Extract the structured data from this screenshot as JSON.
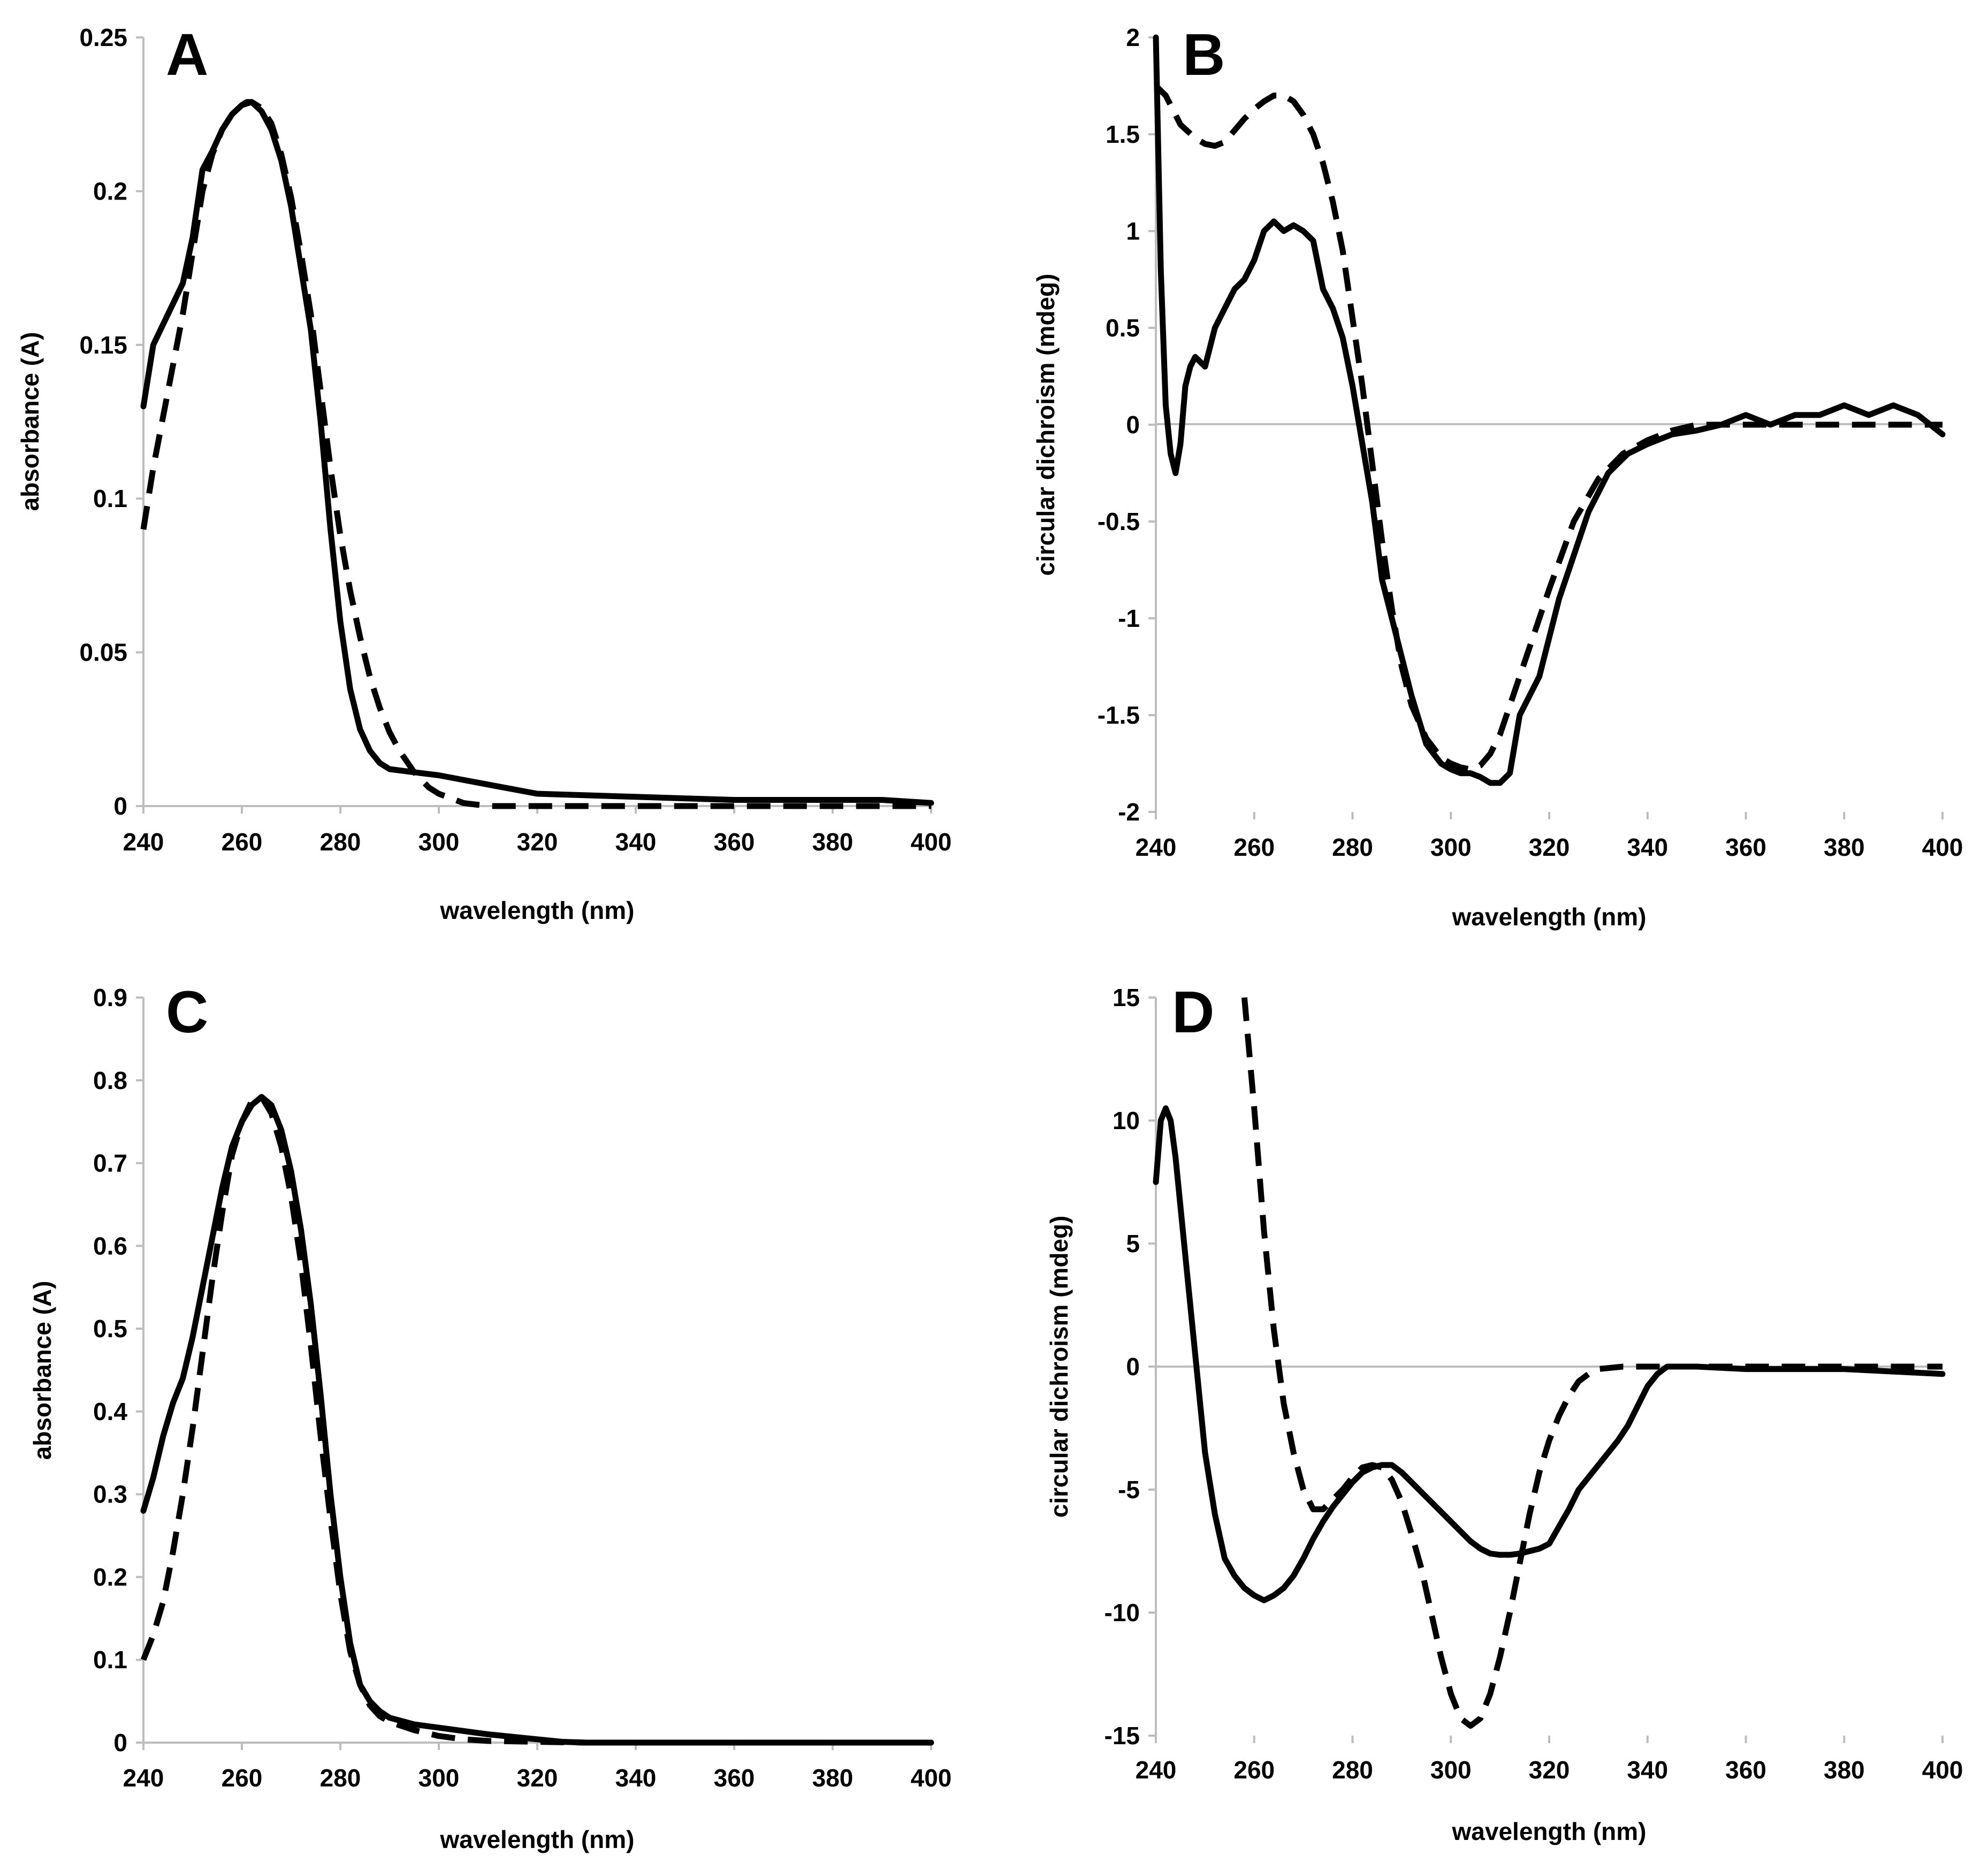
{
  "chart_data": [
    {
      "panel": "A",
      "type": "line",
      "title": "",
      "xlabel": "wavelength (nm)",
      "ylabel": "absorbance (A)",
      "xlim": [
        240,
        400
      ],
      "ylim": [
        0,
        0.25
      ],
      "xticks": [
        "240",
        "260",
        "280",
        "300",
        "320",
        "340",
        "360",
        "380",
        "400"
      ],
      "yticks": [
        "0",
        "0.05",
        "0.1",
        "0.15",
        "0.2",
        "0.25"
      ],
      "grid": false,
      "series": [
        {
          "name": "solid",
          "style": "solid",
          "x": [
            240,
            242,
            245,
            248,
            250,
            252,
            254,
            256,
            258,
            260,
            261,
            262,
            264,
            266,
            268,
            270,
            272,
            274,
            276,
            278,
            280,
            282,
            284,
            286,
            288,
            290,
            295,
            300,
            310,
            320,
            340,
            360,
            380,
            390,
            395,
            400
          ],
          "y": [
            0.13,
            0.15,
            0.16,
            0.17,
            0.185,
            0.207,
            0.213,
            0.22,
            0.225,
            0.228,
            0.229,
            0.229,
            0.226,
            0.22,
            0.21,
            0.195,
            0.175,
            0.155,
            0.125,
            0.09,
            0.06,
            0.038,
            0.025,
            0.018,
            0.014,
            0.012,
            0.011,
            0.01,
            0.007,
            0.004,
            0.003,
            0.002,
            0.002,
            0.002,
            0.0015,
            0.001
          ]
        },
        {
          "name": "dashed",
          "style": "dashed",
          "x": [
            240,
            242,
            245,
            248,
            250,
            252,
            254,
            256,
            258,
            260,
            262,
            264,
            266,
            268,
            270,
            272,
            274,
            276,
            278,
            280,
            282,
            284,
            286,
            288,
            290,
            292,
            295,
            298,
            300,
            305,
            310,
            320,
            340,
            360,
            380,
            400
          ],
          "y": [
            0.09,
            0.11,
            0.135,
            0.16,
            0.18,
            0.2,
            0.212,
            0.22,
            0.225,
            0.228,
            0.229,
            0.227,
            0.222,
            0.212,
            0.198,
            0.18,
            0.16,
            0.135,
            0.11,
            0.088,
            0.07,
            0.055,
            0.042,
            0.032,
            0.024,
            0.018,
            0.011,
            0.006,
            0.004,
            0.001,
            0.0,
            0.0,
            0.0,
            0.0,
            0.0,
            0.0
          ]
        }
      ]
    },
    {
      "panel": "B",
      "type": "line",
      "title": "",
      "xlabel": "wavelength (nm)",
      "ylabel": "circular dichroism (mdeg)",
      "xlim": [
        240,
        400
      ],
      "ylim": [
        -2,
        2
      ],
      "xticks": [
        "240",
        "260",
        "280",
        "300",
        "320",
        "340",
        "360",
        "380",
        "400"
      ],
      "yticks": [
        "-2",
        "-1.5",
        "-1",
        "-0.5",
        "0",
        "0.5",
        "1",
        "1.5",
        "2"
      ],
      "grid": false,
      "series": [
        {
          "name": "solid",
          "style": "solid",
          "x": [
            240,
            241,
            242,
            243,
            244,
            245,
            246,
            247,
            248,
            250,
            251,
            252,
            254,
            256,
            258,
            260,
            262,
            264,
            266,
            268,
            270,
            272,
            274,
            276,
            278,
            280,
            282,
            284,
            286,
            288,
            290,
            292,
            295,
            298,
            300,
            302,
            304,
            306,
            308,
            310,
            312,
            314,
            316,
            318,
            320,
            322,
            324,
            326,
            328,
            330,
            332,
            334,
            336,
            340,
            345,
            350,
            355,
            360,
            365,
            370,
            375,
            380,
            385,
            390,
            395,
            400
          ],
          "y": [
            2.0,
            0.8,
            0.1,
            -0.15,
            -0.25,
            -0.1,
            0.2,
            0.3,
            0.35,
            0.3,
            0.4,
            0.5,
            0.6,
            0.7,
            0.75,
            0.85,
            1.0,
            1.05,
            1.0,
            1.03,
            1.0,
            0.95,
            0.7,
            0.6,
            0.45,
            0.2,
            -0.1,
            -0.4,
            -0.8,
            -1.0,
            -1.2,
            -1.4,
            -1.65,
            -1.75,
            -1.78,
            -1.8,
            -1.8,
            -1.82,
            -1.85,
            -1.85,
            -1.8,
            -1.5,
            -1.4,
            -1.3,
            -1.1,
            -0.9,
            -0.75,
            -0.6,
            -0.45,
            -0.35,
            -0.25,
            -0.2,
            -0.15,
            -0.1,
            -0.05,
            -0.03,
            0.0,
            0.05,
            0.0,
            0.05,
            0.05,
            0.1,
            0.05,
            0.1,
            0.05,
            -0.05
          ]
        },
        {
          "name": "dashed",
          "style": "dashed",
          "x": [
            240,
            242,
            245,
            248,
            250,
            252,
            254,
            256,
            258,
            260,
            262,
            264,
            266,
            268,
            270,
            272,
            274,
            276,
            278,
            280,
            282,
            284,
            286,
            288,
            290,
            292,
            295,
            298,
            300,
            302,
            304,
            306,
            308,
            310,
            312,
            314,
            316,
            318,
            320,
            325,
            330,
            335,
            340,
            345,
            350,
            360,
            370,
            380,
            390,
            400
          ],
          "y": [
            1.75,
            1.7,
            1.55,
            1.48,
            1.45,
            1.44,
            1.46,
            1.52,
            1.58,
            1.63,
            1.67,
            1.7,
            1.7,
            1.67,
            1.6,
            1.5,
            1.35,
            1.15,
            0.9,
            0.55,
            0.2,
            -0.2,
            -0.6,
            -0.95,
            -1.25,
            -1.45,
            -1.62,
            -1.72,
            -1.75,
            -1.77,
            -1.78,
            -1.76,
            -1.7,
            -1.6,
            -1.45,
            -1.3,
            -1.15,
            -1.0,
            -0.85,
            -0.5,
            -0.28,
            -0.15,
            -0.08,
            -0.03,
            0.0,
            0.0,
            0.0,
            0.0,
            0.0,
            0.0
          ]
        }
      ]
    },
    {
      "panel": "C",
      "type": "line",
      "title": "",
      "xlabel": "wavelength (nm)",
      "ylabel": "absorbance (A)",
      "xlim": [
        240,
        400
      ],
      "ylim": [
        0,
        0.9
      ],
      "xticks": [
        "240",
        "260",
        "280",
        "300",
        "320",
        "340",
        "360",
        "380",
        "400"
      ],
      "yticks": [
        "0",
        "0.1",
        "0.2",
        "0.3",
        "0.4",
        "0.5",
        "0.6",
        "0.7",
        "0.8",
        "0.9"
      ],
      "grid": false,
      "series": [
        {
          "name": "solid",
          "style": "solid",
          "x": [
            240,
            242,
            244,
            246,
            248,
            250,
            252,
            254,
            256,
            258,
            260,
            262,
            264,
            266,
            268,
            270,
            272,
            274,
            276,
            278,
            280,
            282,
            284,
            286,
            288,
            290,
            295,
            300,
            310,
            320,
            325,
            330,
            340,
            360,
            380,
            400
          ],
          "y": [
            0.28,
            0.32,
            0.37,
            0.41,
            0.44,
            0.49,
            0.55,
            0.61,
            0.67,
            0.72,
            0.75,
            0.77,
            0.78,
            0.77,
            0.74,
            0.69,
            0.62,
            0.53,
            0.42,
            0.3,
            0.2,
            0.12,
            0.07,
            0.05,
            0.038,
            0.03,
            0.022,
            0.018,
            0.01,
            0.004,
            0.001,
            0.0,
            0.0,
            0.0,
            0.0,
            0.0
          ]
        },
        {
          "name": "dashed",
          "style": "dashed",
          "x": [
            240,
            242,
            244,
            246,
            248,
            250,
            252,
            254,
            256,
            258,
            260,
            262,
            264,
            266,
            268,
            270,
            272,
            274,
            276,
            278,
            280,
            282,
            284,
            286,
            288,
            290,
            295,
            300,
            305,
            310,
            320,
            330,
            340,
            360,
            380,
            400
          ],
          "y": [
            0.1,
            0.13,
            0.17,
            0.23,
            0.3,
            0.38,
            0.47,
            0.56,
            0.64,
            0.71,
            0.75,
            0.775,
            0.78,
            0.76,
            0.72,
            0.66,
            0.58,
            0.48,
            0.37,
            0.27,
            0.18,
            0.11,
            0.07,
            0.045,
            0.032,
            0.025,
            0.015,
            0.008,
            0.004,
            0.002,
            0.001,
            0.0,
            0.0,
            0.0,
            0.0,
            0.0
          ]
        }
      ]
    },
    {
      "panel": "D",
      "type": "line",
      "title": "",
      "xlabel": "wavelength (nm)",
      "ylabel": "circular dichroism (mdeg)",
      "xlim": [
        240,
        400
      ],
      "ylim": [
        -15,
        15
      ],
      "xticks": [
        "240",
        "260",
        "280",
        "300",
        "320",
        "340",
        "360",
        "380",
        "400"
      ],
      "yticks": [
        "-15",
        "-10",
        "-5",
        "0",
        "5",
        "10",
        "15"
      ],
      "grid": false,
      "series": [
        {
          "name": "solid",
          "style": "solid",
          "x": [
            240,
            241,
            242,
            243,
            244,
            246,
            248,
            250,
            252,
            254,
            256,
            258,
            260,
            262,
            264,
            266,
            268,
            270,
            272,
            274,
            276,
            278,
            280,
            282,
            284,
            286,
            288,
            290,
            292,
            295,
            298,
            300,
            302,
            304,
            306,
            308,
            310,
            312,
            314,
            316,
            318,
            320,
            322,
            324,
            326,
            328,
            330,
            332,
            334,
            336,
            338,
            340,
            342,
            344,
            346,
            350,
            360,
            370,
            380,
            390,
            400
          ],
          "y": [
            7.5,
            10.0,
            10.5,
            10.0,
            8.5,
            4.5,
            0.5,
            -3.5,
            -6.0,
            -7.8,
            -8.5,
            -9.0,
            -9.3,
            -9.5,
            -9.3,
            -9.0,
            -8.5,
            -7.8,
            -7.0,
            -6.3,
            -5.7,
            -5.2,
            -4.7,
            -4.3,
            -4.1,
            -4.0,
            -4.0,
            -4.3,
            -4.7,
            -5.3,
            -5.9,
            -6.3,
            -6.7,
            -7.1,
            -7.4,
            -7.6,
            -7.65,
            -7.65,
            -7.6,
            -7.5,
            -7.4,
            -7.2,
            -6.5,
            -5.8,
            -5.0,
            -4.5,
            -4.0,
            -3.5,
            -3.0,
            -2.4,
            -1.6,
            -0.8,
            -0.3,
            0.0,
            0.0,
            0.0,
            -0.1,
            -0.1,
            -0.1,
            -0.2,
            -0.3
          ]
        },
        {
          "name": "dashed",
          "style": "dashed",
          "x": [
            258,
            260,
            262,
            264,
            266,
            268,
            270,
            272,
            274,
            276,
            278,
            280,
            282,
            284,
            286,
            288,
            290,
            292,
            294,
            296,
            298,
            300,
            302,
            304,
            306,
            308,
            310,
            312,
            314,
            316,
            318,
            320,
            322,
            324,
            326,
            328,
            330,
            335,
            340,
            345,
            350,
            360,
            370,
            380,
            390,
            400
          ],
          "y": [
            15.0,
            10.5,
            5.5,
            1.5,
            -1.5,
            -3.5,
            -5.0,
            -5.8,
            -5.8,
            -5.4,
            -5.0,
            -4.5,
            -4.1,
            -4.0,
            -4.1,
            -4.6,
            -5.5,
            -6.8,
            -8.2,
            -10.0,
            -11.8,
            -13.3,
            -14.3,
            -14.6,
            -14.3,
            -13.3,
            -11.8,
            -10.0,
            -8.0,
            -6.0,
            -4.3,
            -3.0,
            -2.0,
            -1.2,
            -0.6,
            -0.3,
            -0.1,
            0.0,
            0.0,
            0.0,
            0.0,
            0.0,
            0.0,
            0.0,
            0.0,
            0.0
          ]
        }
      ]
    }
  ]
}
